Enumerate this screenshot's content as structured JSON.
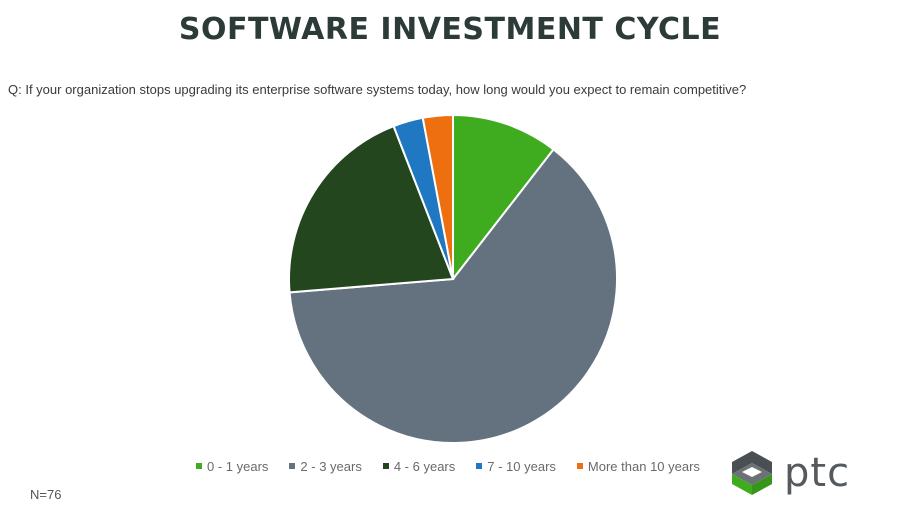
{
  "title": "SOFTWARE INVESTMENT CYCLE",
  "question": "Q: If your organization stops upgrading its enterprise software systems today, how long would you expect to remain competitive?",
  "sample_size": "N=76",
  "logo": {
    "text": "ptc",
    "icon": "ptc-logo-icon"
  },
  "chart_data": {
    "type": "pie",
    "title": "",
    "start_angle": "12 o'clock",
    "direction": "clockwise",
    "legend_position": "bottom",
    "slices": [
      {
        "label": "0 - 1 years",
        "value": 10.5,
        "color": "#3fab1e"
      },
      {
        "label": "2 - 3 years",
        "value": 63.2,
        "color": "#64727f"
      },
      {
        "label": "4 - 6 years",
        "value": 20.4,
        "color": "#23461f"
      },
      {
        "label": "7 - 10 years",
        "value": 2.95,
        "color": "#1f78c1"
      },
      {
        "label": "More than 10 years",
        "value": 2.95,
        "color": "#ee6f10"
      }
    ]
  }
}
